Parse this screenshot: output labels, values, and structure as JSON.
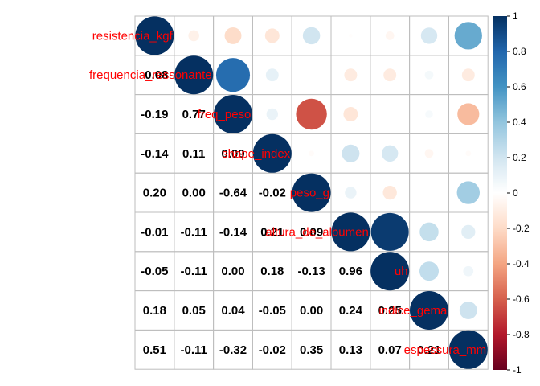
{
  "chart_data": {
    "type": "heatmap",
    "variables": [
      "resistencia_kgf",
      "frequencia_ressonante",
      "freq_peso",
      "shape_index",
      "peso_g",
      "altura_de_albumen",
      "uh",
      "indice_gema",
      "espessura_mm"
    ],
    "lower_values": [
      [],
      [
        -0.08
      ],
      [
        -0.19,
        0.77
      ],
      [
        -0.14,
        0.11,
        0.09
      ],
      [
        0.2,
        0.0,
        -0.64,
        -0.02
      ],
      [
        -0.01,
        -0.11,
        -0.14,
        0.21,
        0.09
      ],
      [
        -0.05,
        -0.11,
        0.0,
        0.18,
        -0.13,
        0.96
      ],
      [
        0.18,
        0.05,
        0.04,
        -0.05,
        0.0,
        0.24,
        0.25
      ],
      [
        0.51,
        -0.11,
        -0.32,
        -0.02,
        0.35,
        0.13,
        0.07,
        0.21
      ]
    ],
    "lower_labels": [
      [],
      [
        "-0.08"
      ],
      [
        "-0.19",
        "0.77"
      ],
      [
        "-0.14",
        "0.11",
        "0.09"
      ],
      [
        "0.20",
        "0.00",
        "-0.64",
        "-0.02"
      ],
      [
        "-0.01",
        "-0.11",
        "-0.14",
        "0.21",
        "0.09"
      ],
      [
        "-0.05",
        "-0.11",
        "0.00",
        "0.18",
        "-0.13",
        "0.96"
      ],
      [
        "0.18",
        "0.05",
        "0.04",
        "-0.05",
        "0.00",
        "0.24",
        "0.25"
      ],
      [
        "0.51",
        "-0.11",
        "-0.32",
        "-0.02",
        "0.35",
        "0.13",
        "0.07",
        "0.21"
      ]
    ],
    "upper_method": "circle",
    "lower_method": "number",
    "colorbar": {
      "range": [
        -1,
        1
      ],
      "ticks": [
        "1",
        "0.8",
        "0.6",
        "0.4",
        "0.2",
        "0",
        "-0.2",
        "-0.4",
        "-0.6",
        "-0.8",
        "-1"
      ],
      "palette": [
        "#67001f",
        "#b2182b",
        "#d6604d",
        "#f4a582",
        "#fddbc7",
        "#ffffff",
        "#d1e5f0",
        "#92c5de",
        "#4393c3",
        "#2166ac",
        "#053061"
      ]
    },
    "label_color": "#ff0000",
    "grid": true
  }
}
